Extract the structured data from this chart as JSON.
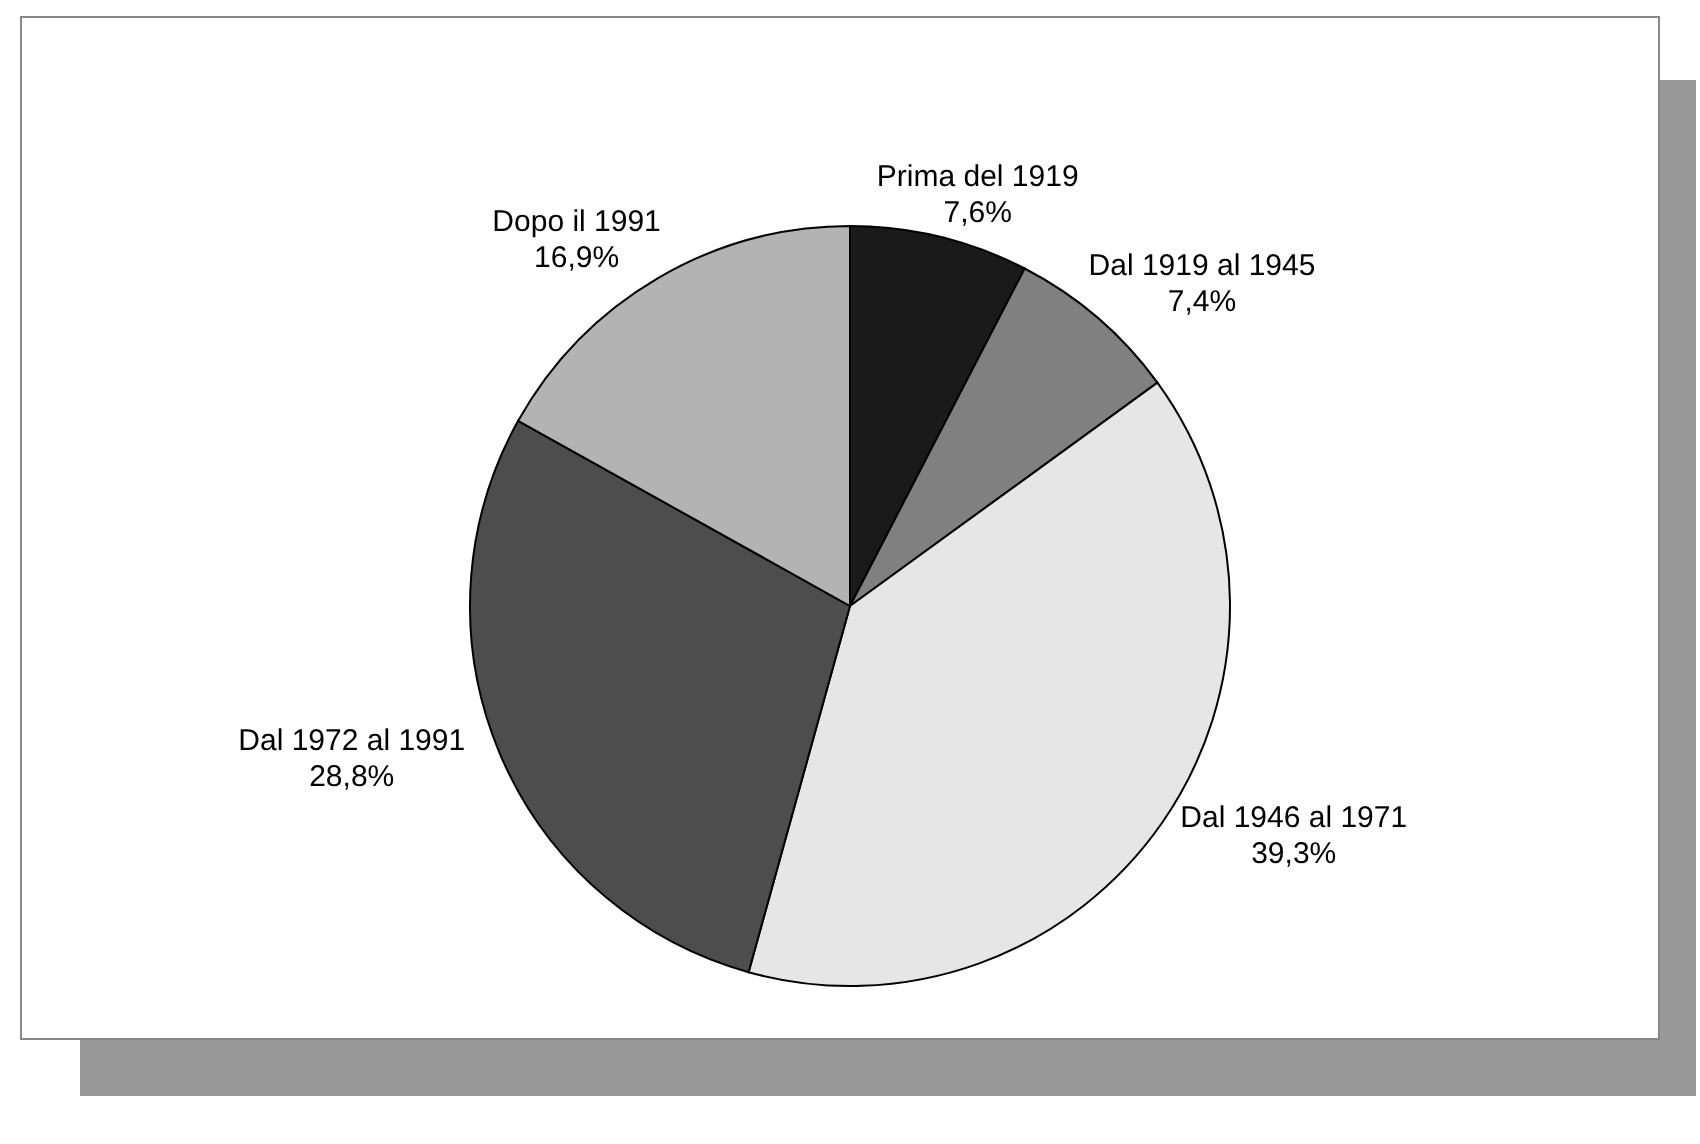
{
  "chart_data": {
    "type": "pie",
    "categories": [
      "Prima del 1919",
      "Dal 1919 al 1945",
      "Dal 1946 al 1971",
      "Dal 1972 al 1991",
      "Dopo il 1991"
    ],
    "values": [
      7.6,
      7.4,
      39.3,
      28.8,
      16.9
    ],
    "colors": [
      "#1a1a1a",
      "#808080",
      "#e6e6e6",
      "#4d4d4d",
      "#b3b3b3"
    ],
    "value_labels": [
      "7,6%",
      "7,4%",
      "39,3%",
      "28,8%",
      "16,9%"
    ],
    "legend": false
  }
}
